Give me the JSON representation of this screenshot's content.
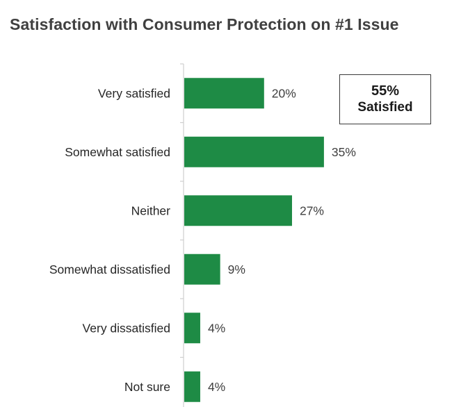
{
  "chart_data": {
    "type": "bar",
    "orientation": "horizontal",
    "title": "Satisfaction with Consumer Protection on #1 Issue",
    "categories": [
      "Very satisfied",
      "Somewhat satisfied",
      "Neither",
      "Somewhat dissatisfied",
      "Very dissatisfied",
      "Not sure"
    ],
    "values": [
      20,
      35,
      27,
      9,
      4,
      4
    ],
    "value_labels": [
      "20%",
      "35%",
      "27%",
      "9%",
      "4%",
      "4%"
    ],
    "unit": "%",
    "bar_color": "#1e8b45",
    "xlim": [
      0,
      40
    ],
    "grid": false,
    "legend": "none",
    "annotation": {
      "value": "55%",
      "label": "Satisfied"
    }
  }
}
